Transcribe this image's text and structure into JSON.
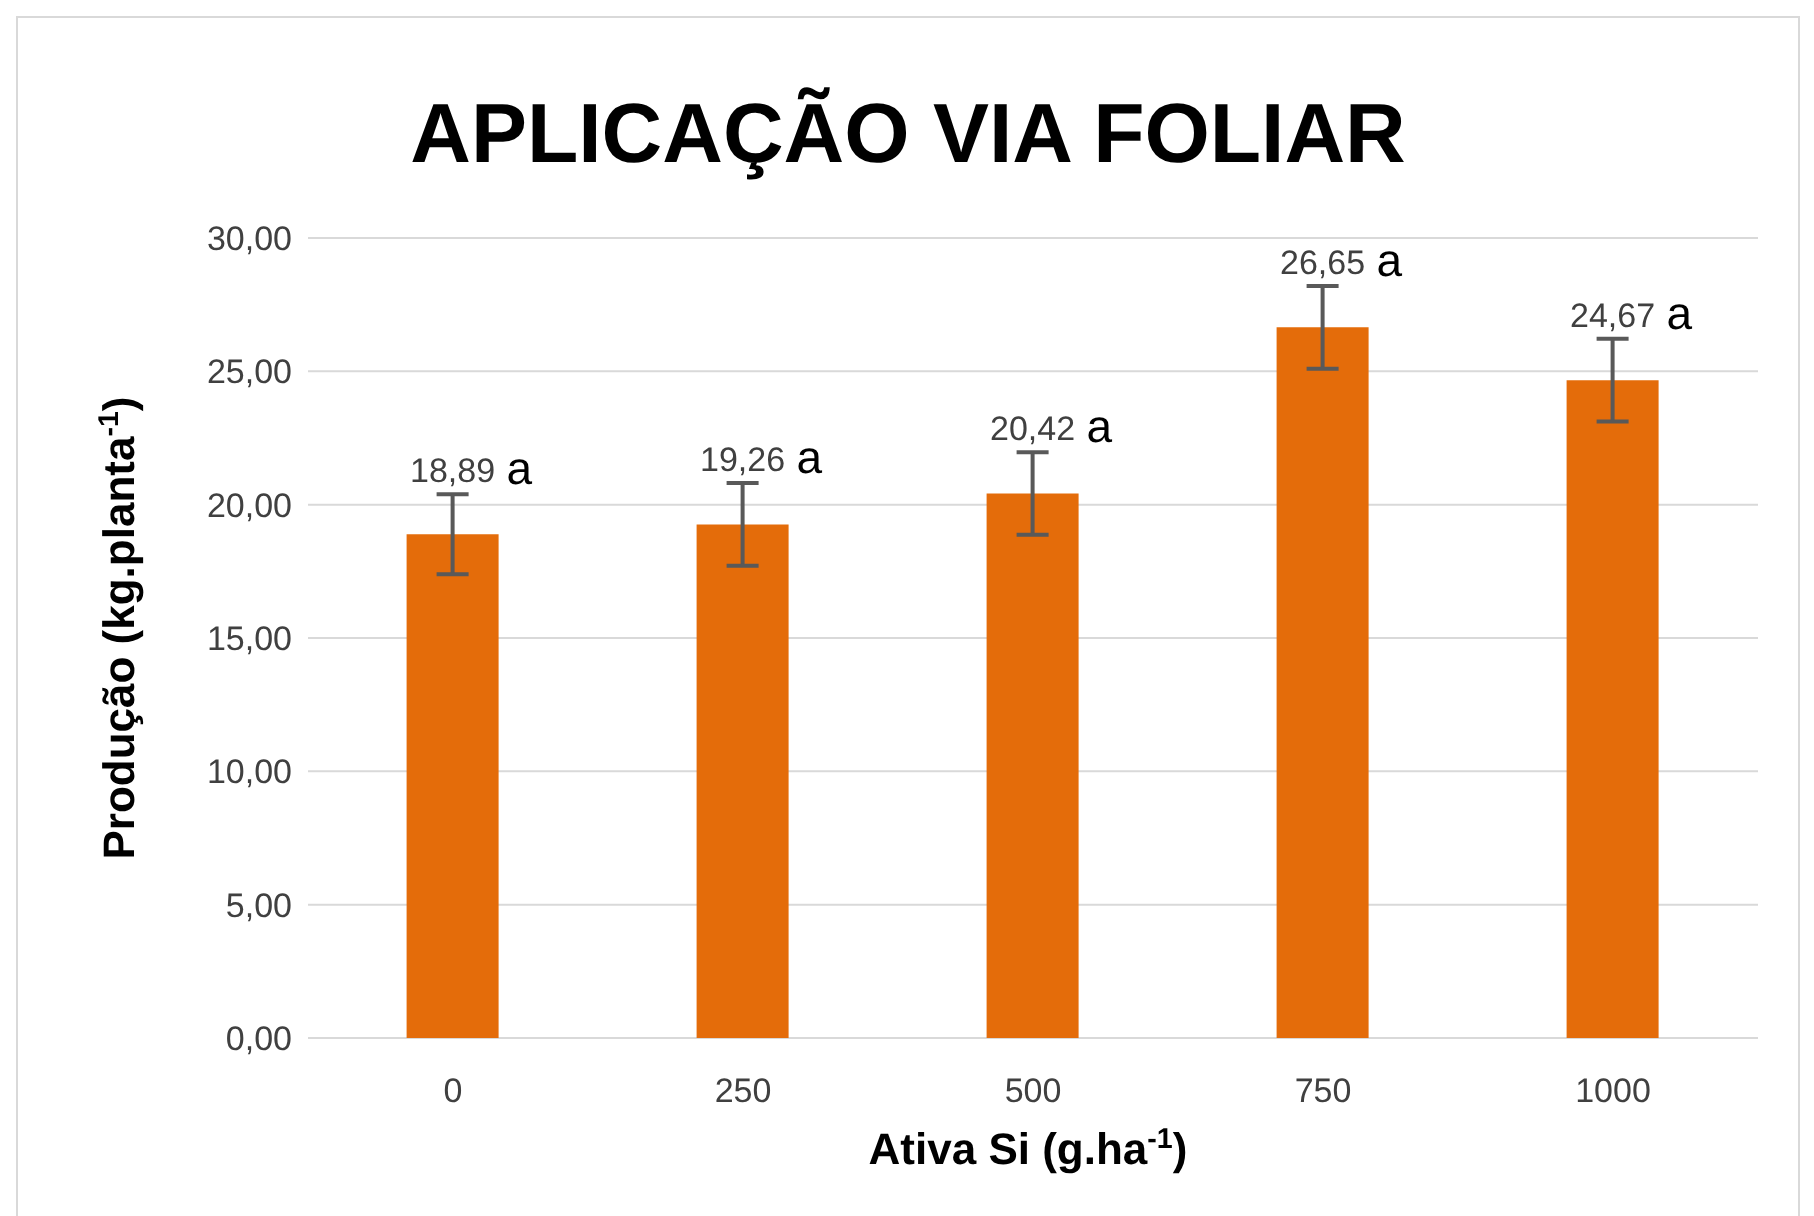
{
  "chart_data": {
    "type": "bar",
    "title": "APLICAÇÃO VIA FOLIAR",
    "xlabel": "Ativa Si (g.ha$^{-1}$)",
    "ylabel": "Produção (kg.planta$^{-1}$)",
    "categories": [
      "0",
      "250",
      "500",
      "750",
      "1000"
    ],
    "values": [
      18.89,
      19.26,
      20.42,
      26.65,
      24.67
    ],
    "color": "#e46c0a",
    "errors": [
      1.5,
      1.55,
      1.55,
      1.55,
      1.55
    ],
    "value_labels": [
      "18,89",
      "19,26",
      "20,42",
      "26,65",
      "24,67"
    ],
    "annotations": [
      {
        "text": "a",
        "x": "0",
        "y": 18.89
      },
      {
        "text": "a",
        "x": "250",
        "y": 19.26
      },
      {
        "text": "a",
        "x": "500",
        "y": 20.42
      },
      {
        "text": "a",
        "x": "750",
        "y": 26.65
      },
      {
        "text": "a",
        "x": "1000",
        "y": 24.67
      }
    ],
    "ylim": [
      0,
      30
    ],
    "yticks": [
      {
        "value": 0,
        "label": "0,00"
      },
      {
        "value": 5,
        "label": "5,00"
      },
      {
        "value": 10,
        "label": "10,00"
      },
      {
        "value": 15,
        "label": "15,00"
      },
      {
        "value": 20,
        "label": "20,00"
      },
      {
        "value": 25,
        "label": "25,00"
      },
      {
        "value": 30,
        "label": "30,00"
      }
    ],
    "grid": "y",
    "legend": false
  }
}
